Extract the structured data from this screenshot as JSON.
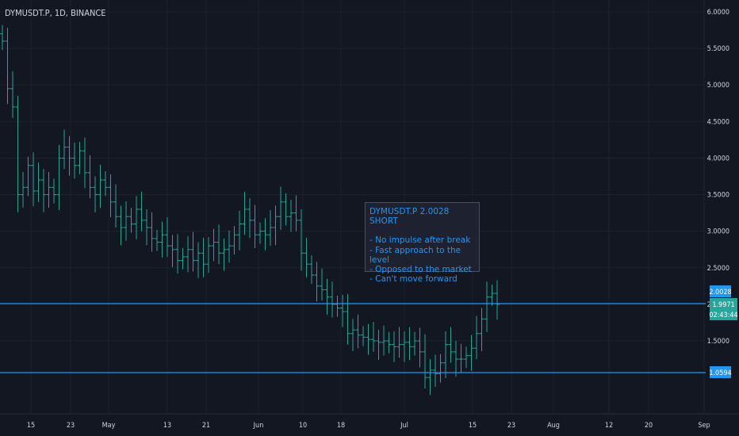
{
  "header": {
    "symbol_line": "DYMUSDT.P, 1D, BINANCE"
  },
  "annotation": {
    "title": "DYMUSDT.P 2.0028 SHORT",
    "lines": [
      "- No impulse after break",
      "- Fast approach to the level",
      "- Opposed to the market",
      "- Can't move forward"
    ]
  },
  "price_labels": {
    "level_high": "2.0028",
    "current": "1.9971",
    "countdown": "02:43:44",
    "level_low": "1.0594"
  },
  "colors": {
    "background": "#131722",
    "candle": "#26a69a",
    "level_line": "#2196f3",
    "grid": "#1e222d",
    "text": "#d1d4dc"
  },
  "chart_data": {
    "type": "ohlc",
    "x_ticks": [
      "15",
      "23",
      "May",
      "13",
      "21",
      "Jun",
      "10",
      "18",
      "Jul",
      "15",
      "23",
      "Aug",
      "12",
      "20",
      "Sep"
    ],
    "y_ticks": [
      "6.0000",
      "5.5000",
      "5.0000",
      "4.5000",
      "4.0000",
      "3.5000",
      "3.0000",
      "2.5000",
      "2.0000",
      "1.5000"
    ],
    "ylim": [
      0.8,
      6.1
    ],
    "horizontal_levels": [
      2.0028,
      1.0594
    ],
    "closes": [
      5.6,
      4.95,
      4.7,
      3.5,
      3.6,
      3.9,
      3.55,
      3.7,
      3.5,
      3.6,
      3.5,
      4.0,
      4.15,
      4.0,
      3.9,
      4.1,
      3.8,
      3.6,
      3.5,
      3.7,
      3.6,
      3.4,
      3.2,
      3.05,
      3.2,
      3.1,
      3.3,
      3.15,
      3.05,
      2.9,
      2.85,
      2.95,
      2.8,
      2.75,
      2.6,
      2.65,
      2.75,
      2.6,
      2.7,
      2.55,
      2.8,
      2.85,
      2.7,
      2.75,
      2.8,
      2.95,
      3.1,
      3.3,
      3.15,
      2.95,
      3.0,
      2.95,
      3.05,
      3.2,
      3.4,
      3.2,
      3.25,
      3.15,
      2.7,
      2.55,
      2.4,
      2.25,
      2.2,
      2.1,
      2.0,
      1.95,
      1.9,
      1.6,
      1.65,
      1.58,
      1.55,
      1.52,
      1.5,
      1.48,
      1.5,
      1.45,
      1.42,
      1.45,
      1.48,
      1.42,
      1.5,
      1.35,
      1.0,
      1.1,
      1.05,
      1.2,
      1.45,
      1.35,
      1.25,
      1.25,
      1.3,
      1.4,
      1.6,
      1.8,
      2.1,
      2.15,
      2.0
    ],
    "series": [
      {
        "name": "DYMUSDT.P",
        "ohlc_note": "daily bars"
      }
    ]
  }
}
